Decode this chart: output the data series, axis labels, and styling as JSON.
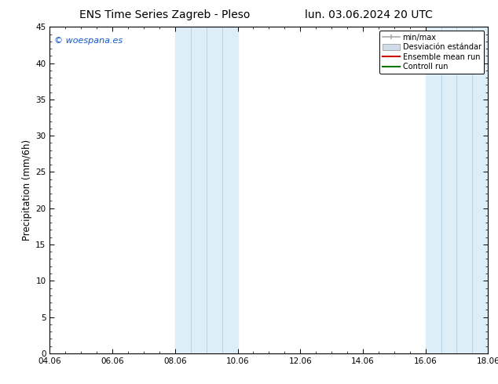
{
  "title": "ENS Time Series Zagreb - Pleso",
  "subtitle": "lun. 03.06.2024 20 UTC",
  "ylabel": "Precipitation (mm/6h)",
  "ylim": [
    0,
    45
  ],
  "yticks": [
    0,
    5,
    10,
    15,
    20,
    25,
    30,
    35,
    40,
    45
  ],
  "xticklabels": [
    "04.06",
    "06.06",
    "08.06",
    "10.06",
    "12.06",
    "14.06",
    "16.06",
    "18.06"
  ],
  "x_tick_positions": [
    0,
    2,
    4,
    6,
    8,
    10,
    12,
    14
  ],
  "xlim": [
    0,
    14
  ],
  "shaded_regions": [
    {
      "x_start": 4.0,
      "x_end": 6.0
    },
    {
      "x_start": 12.0,
      "x_end": 14.0
    }
  ],
  "shaded_color": "#ddeef8",
  "vertical_lines_x": [
    4.5,
    5.0,
    5.5,
    12.5,
    13.0,
    13.5
  ],
  "vertical_line_color": "#b8d4e8",
  "background_color": "#ffffff",
  "plot_bg_color": "#ffffff",
  "watermark_text": "© woespana.es",
  "watermark_color": "#1155cc",
  "title_fontsize": 10,
  "subtitle_fontsize": 10,
  "tick_fontsize": 7.5,
  "ylabel_fontsize": 8.5,
  "legend_fontsize": 7,
  "minmax_color": "#aaaaaa",
  "std_facecolor": "#d0dde8",
  "std_edgecolor": "#aaaaaa",
  "ensemble_color": "#cc0000",
  "control_color": "#007700"
}
